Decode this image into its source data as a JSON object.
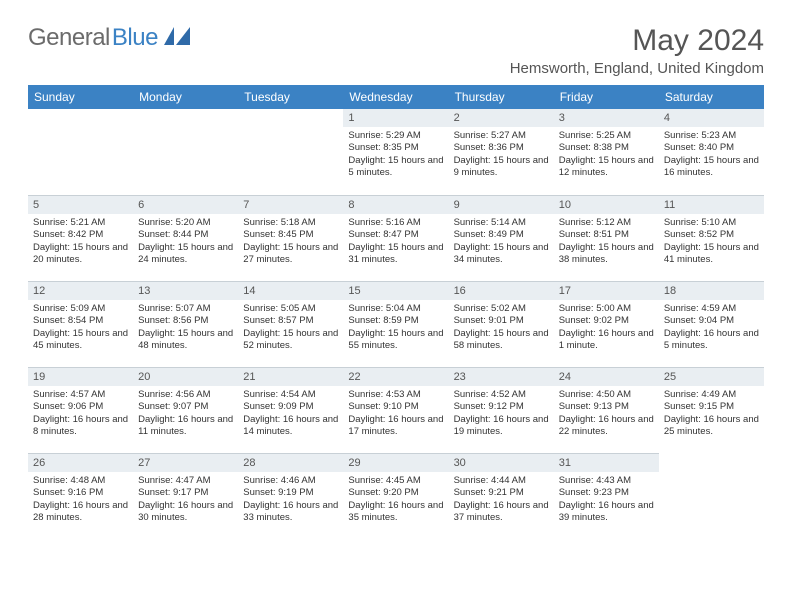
{
  "brand": {
    "word1": "General",
    "word2": "Blue"
  },
  "title": "May 2024",
  "location": "Hemsworth, England, United Kingdom",
  "colors": {
    "header_bg": "#3b82c4",
    "header_text": "#ffffff",
    "daybar_bg": "#e9eef2",
    "daybar_border": "#c8d0d6",
    "body_text": "#333333",
    "muted_text": "#555555"
  },
  "weekdays": [
    "Sunday",
    "Monday",
    "Tuesday",
    "Wednesday",
    "Thursday",
    "Friday",
    "Saturday"
  ],
  "weeks": [
    [
      null,
      null,
      null,
      {
        "n": "1",
        "sr": "Sunrise: 5:29 AM",
        "ss": "Sunset: 8:35 PM",
        "dl": "Daylight: 15 hours and 5 minutes."
      },
      {
        "n": "2",
        "sr": "Sunrise: 5:27 AM",
        "ss": "Sunset: 8:36 PM",
        "dl": "Daylight: 15 hours and 9 minutes."
      },
      {
        "n": "3",
        "sr": "Sunrise: 5:25 AM",
        "ss": "Sunset: 8:38 PM",
        "dl": "Daylight: 15 hours and 12 minutes."
      },
      {
        "n": "4",
        "sr": "Sunrise: 5:23 AM",
        "ss": "Sunset: 8:40 PM",
        "dl": "Daylight: 15 hours and 16 minutes."
      }
    ],
    [
      {
        "n": "5",
        "sr": "Sunrise: 5:21 AM",
        "ss": "Sunset: 8:42 PM",
        "dl": "Daylight: 15 hours and 20 minutes."
      },
      {
        "n": "6",
        "sr": "Sunrise: 5:20 AM",
        "ss": "Sunset: 8:44 PM",
        "dl": "Daylight: 15 hours and 24 minutes."
      },
      {
        "n": "7",
        "sr": "Sunrise: 5:18 AM",
        "ss": "Sunset: 8:45 PM",
        "dl": "Daylight: 15 hours and 27 minutes."
      },
      {
        "n": "8",
        "sr": "Sunrise: 5:16 AM",
        "ss": "Sunset: 8:47 PM",
        "dl": "Daylight: 15 hours and 31 minutes."
      },
      {
        "n": "9",
        "sr": "Sunrise: 5:14 AM",
        "ss": "Sunset: 8:49 PM",
        "dl": "Daylight: 15 hours and 34 minutes."
      },
      {
        "n": "10",
        "sr": "Sunrise: 5:12 AM",
        "ss": "Sunset: 8:51 PM",
        "dl": "Daylight: 15 hours and 38 minutes."
      },
      {
        "n": "11",
        "sr": "Sunrise: 5:10 AM",
        "ss": "Sunset: 8:52 PM",
        "dl": "Daylight: 15 hours and 41 minutes."
      }
    ],
    [
      {
        "n": "12",
        "sr": "Sunrise: 5:09 AM",
        "ss": "Sunset: 8:54 PM",
        "dl": "Daylight: 15 hours and 45 minutes."
      },
      {
        "n": "13",
        "sr": "Sunrise: 5:07 AM",
        "ss": "Sunset: 8:56 PM",
        "dl": "Daylight: 15 hours and 48 minutes."
      },
      {
        "n": "14",
        "sr": "Sunrise: 5:05 AM",
        "ss": "Sunset: 8:57 PM",
        "dl": "Daylight: 15 hours and 52 minutes."
      },
      {
        "n": "15",
        "sr": "Sunrise: 5:04 AM",
        "ss": "Sunset: 8:59 PM",
        "dl": "Daylight: 15 hours and 55 minutes."
      },
      {
        "n": "16",
        "sr": "Sunrise: 5:02 AM",
        "ss": "Sunset: 9:01 PM",
        "dl": "Daylight: 15 hours and 58 minutes."
      },
      {
        "n": "17",
        "sr": "Sunrise: 5:00 AM",
        "ss": "Sunset: 9:02 PM",
        "dl": "Daylight: 16 hours and 1 minute."
      },
      {
        "n": "18",
        "sr": "Sunrise: 4:59 AM",
        "ss": "Sunset: 9:04 PM",
        "dl": "Daylight: 16 hours and 5 minutes."
      }
    ],
    [
      {
        "n": "19",
        "sr": "Sunrise: 4:57 AM",
        "ss": "Sunset: 9:06 PM",
        "dl": "Daylight: 16 hours and 8 minutes."
      },
      {
        "n": "20",
        "sr": "Sunrise: 4:56 AM",
        "ss": "Sunset: 9:07 PM",
        "dl": "Daylight: 16 hours and 11 minutes."
      },
      {
        "n": "21",
        "sr": "Sunrise: 4:54 AM",
        "ss": "Sunset: 9:09 PM",
        "dl": "Daylight: 16 hours and 14 minutes."
      },
      {
        "n": "22",
        "sr": "Sunrise: 4:53 AM",
        "ss": "Sunset: 9:10 PM",
        "dl": "Daylight: 16 hours and 17 minutes."
      },
      {
        "n": "23",
        "sr": "Sunrise: 4:52 AM",
        "ss": "Sunset: 9:12 PM",
        "dl": "Daylight: 16 hours and 19 minutes."
      },
      {
        "n": "24",
        "sr": "Sunrise: 4:50 AM",
        "ss": "Sunset: 9:13 PM",
        "dl": "Daylight: 16 hours and 22 minutes."
      },
      {
        "n": "25",
        "sr": "Sunrise: 4:49 AM",
        "ss": "Sunset: 9:15 PM",
        "dl": "Daylight: 16 hours and 25 minutes."
      }
    ],
    [
      {
        "n": "26",
        "sr": "Sunrise: 4:48 AM",
        "ss": "Sunset: 9:16 PM",
        "dl": "Daylight: 16 hours and 28 minutes."
      },
      {
        "n": "27",
        "sr": "Sunrise: 4:47 AM",
        "ss": "Sunset: 9:17 PM",
        "dl": "Daylight: 16 hours and 30 minutes."
      },
      {
        "n": "28",
        "sr": "Sunrise: 4:46 AM",
        "ss": "Sunset: 9:19 PM",
        "dl": "Daylight: 16 hours and 33 minutes."
      },
      {
        "n": "29",
        "sr": "Sunrise: 4:45 AM",
        "ss": "Sunset: 9:20 PM",
        "dl": "Daylight: 16 hours and 35 minutes."
      },
      {
        "n": "30",
        "sr": "Sunrise: 4:44 AM",
        "ss": "Sunset: 9:21 PM",
        "dl": "Daylight: 16 hours and 37 minutes."
      },
      {
        "n": "31",
        "sr": "Sunrise: 4:43 AM",
        "ss": "Sunset: 9:23 PM",
        "dl": "Daylight: 16 hours and 39 minutes."
      },
      null
    ]
  ]
}
